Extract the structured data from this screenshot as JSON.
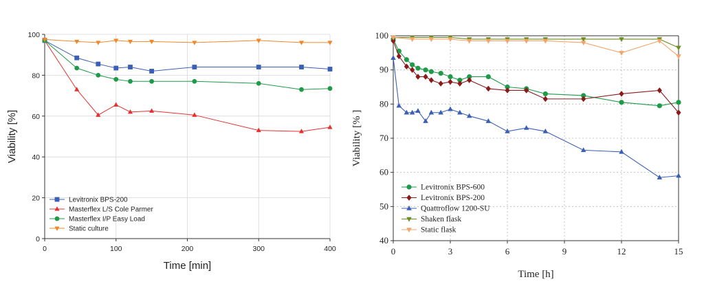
{
  "chart_data": [
    {
      "type": "line",
      "xlabel": "Time [min]",
      "ylabel": "Viability [%]",
      "xlim": [
        0,
        400
      ],
      "ylim": [
        0,
        100
      ],
      "xticks": [
        0,
        100,
        200,
        300,
        400
      ],
      "yticks": [
        0,
        20,
        40,
        60,
        80,
        100
      ],
      "grid": true,
      "legend_position": "bottom-left",
      "series": [
        {
          "name": "Levitronix BPS-200",
          "color": "#3a5fb4",
          "marker": "square",
          "x": [
            0,
            45,
            75,
            100,
            120,
            150,
            210,
            300,
            360,
            400
          ],
          "y": [
            97,
            88.5,
            85.5,
            83.5,
            84,
            82,
            84,
            84,
            84,
            83
          ]
        },
        {
          "name": "Masterflex L/S Cole Parmer",
          "color": "#e53030",
          "marker": "triangle-up",
          "x": [
            0,
            45,
            75,
            100,
            120,
            150,
            210,
            300,
            360,
            400
          ],
          "y": [
            97,
            73,
            60.5,
            65.5,
            62,
            62.5,
            60.5,
            53,
            52.5,
            54.5
          ]
        },
        {
          "name": "Masterflex I/P Easy Load",
          "color": "#1e9a48",
          "marker": "circle",
          "x": [
            0,
            45,
            75,
            100,
            120,
            150,
            210,
            300,
            360,
            400
          ],
          "y": [
            97,
            83.5,
            80,
            78,
            77,
            77,
            77,
            76,
            73,
            73.5
          ]
        },
        {
          "name": "Static culture",
          "color": "#f0882a",
          "marker": "triangle-down",
          "x": [
            0,
            45,
            75,
            100,
            120,
            150,
            210,
            300,
            360,
            400
          ],
          "y": [
            97.5,
            96.5,
            96,
            97,
            96.5,
            96.5,
            96,
            97,
            96,
            96
          ]
        }
      ]
    },
    {
      "type": "line",
      "xlabel": "Time [h]",
      "ylabel": "Viability [% ]",
      "xlim": [
        0,
        15
      ],
      "ylim": [
        40,
        100
      ],
      "xticks": [
        0,
        3,
        6,
        9,
        12,
        15
      ],
      "yticks": [
        40,
        50,
        60,
        70,
        80,
        90,
        100
      ],
      "grid": true,
      "legend_position": "bottom-left",
      "series": [
        {
          "name": "Levitronix BPS-600",
          "color": "#1e9a48",
          "marker": "circle",
          "x": [
            0,
            0.3,
            0.7,
            1,
            1.3,
            1.7,
            2,
            2.5,
            3,
            3.5,
            4,
            5,
            6,
            7,
            8,
            10,
            12,
            14,
            15
          ],
          "y": [
            99,
            95.5,
            93,
            91.5,
            90.5,
            90,
            89.5,
            89,
            88,
            87,
            88,
            88,
            85,
            84.5,
            83,
            82.5,
            80.5,
            79.5,
            80.5
          ]
        },
        {
          "name": "Levitronix BPS-200",
          "color": "#8b1a1a",
          "marker": "diamond",
          "x": [
            0,
            0.3,
            0.7,
            1,
            1.3,
            1.7,
            2,
            2.5,
            3,
            3.5,
            4,
            5,
            6,
            7,
            8,
            10,
            12,
            14,
            15
          ],
          "y": [
            98.5,
            94,
            91,
            90,
            88,
            88,
            87,
            86,
            86.5,
            86,
            87,
            84.5,
            84,
            84,
            81.5,
            81.5,
            83,
            84,
            77.5
          ]
        },
        {
          "name": "Quattroflow 1200-SU",
          "color": "#3a5fb4",
          "marker": "triangle-up",
          "x": [
            0,
            0.3,
            0.7,
            1,
            1.3,
            1.7,
            2,
            2.5,
            3,
            3.5,
            4,
            5,
            6,
            7,
            8,
            10,
            12,
            14,
            15
          ],
          "y": [
            93.5,
            79.5,
            77.5,
            77.5,
            78,
            75,
            77.5,
            77.5,
            78.5,
            77.5,
            76.5,
            75,
            72,
            73,
            72,
            66.5,
            66,
            58.5,
            59
          ]
        },
        {
          "name": "Shaken flask",
          "color": "#6b8e23",
          "marker": "triangle-down",
          "x": [
            0,
            1,
            2,
            3,
            4,
            5,
            6,
            7,
            8,
            10,
            12,
            14,
            15
          ],
          "y": [
            99.5,
            99.5,
            99.5,
            99.5,
            99,
            99,
            99,
            99,
            99,
            99,
            99,
            99,
            96.5
          ]
        },
        {
          "name": "Static flask",
          "color": "#f5a46b",
          "marker": "triangle-down",
          "x": [
            0,
            1,
            2,
            3,
            4,
            5,
            6,
            7,
            8,
            10,
            12,
            14,
            15
          ],
          "y": [
            99.5,
            99,
            99,
            99,
            98.5,
            98.5,
            98.5,
            98.5,
            98.5,
            98,
            95,
            98.5,
            94
          ]
        }
      ]
    }
  ]
}
